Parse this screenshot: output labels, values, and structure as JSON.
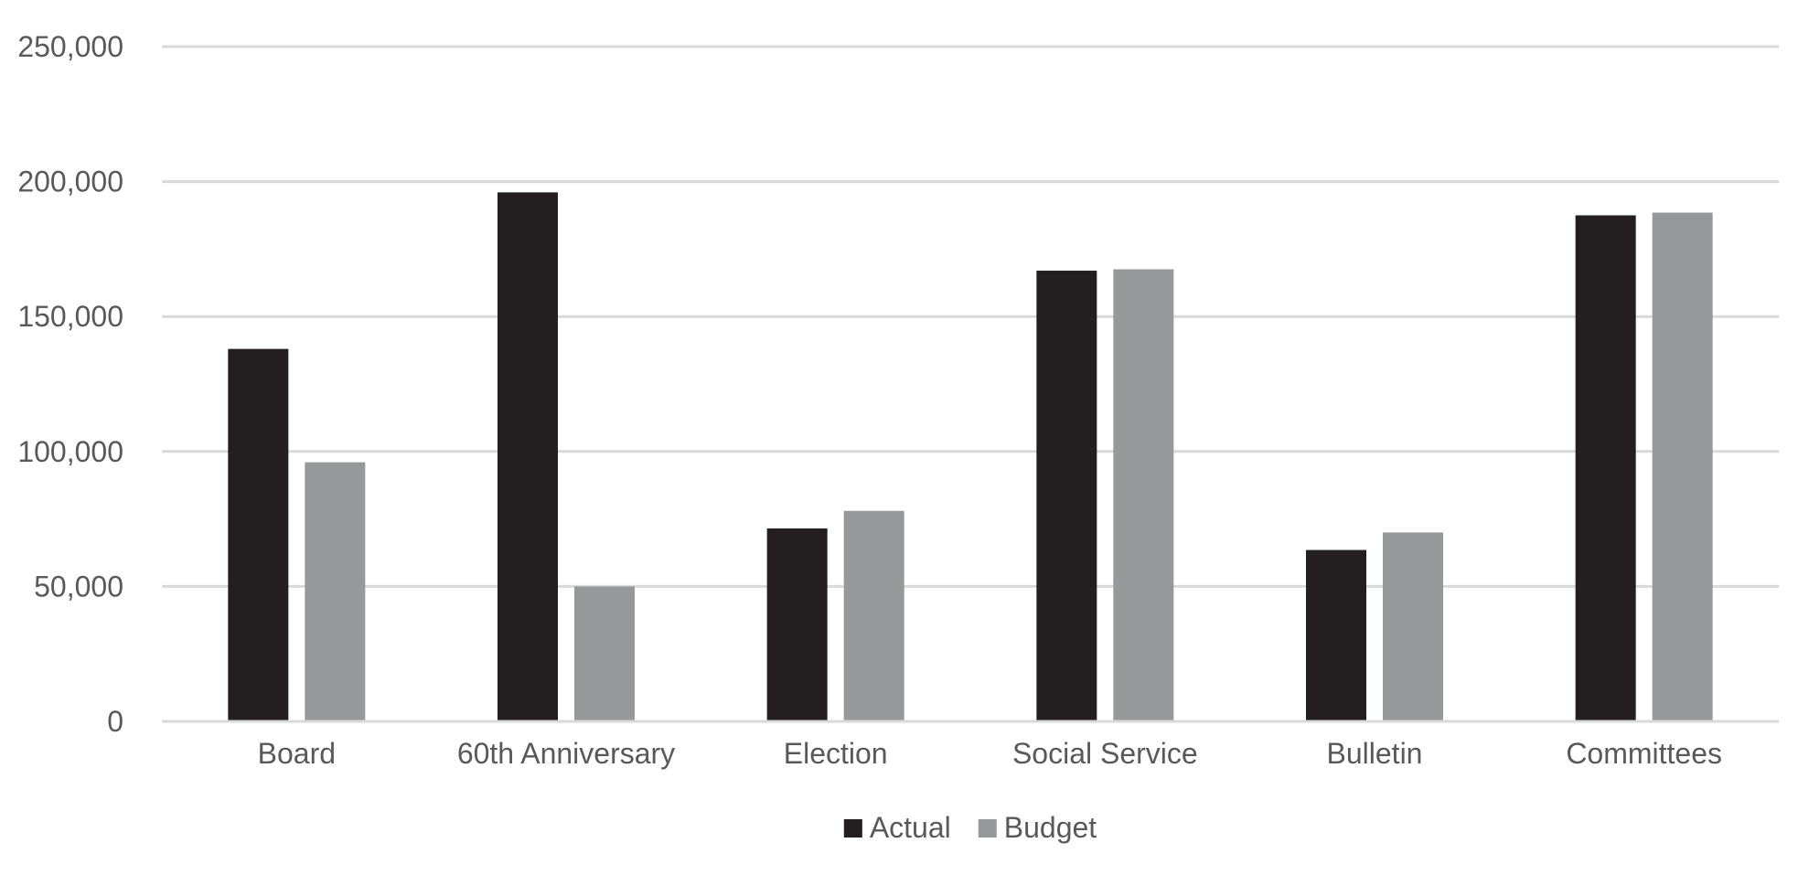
{
  "chart_data": {
    "type": "bar",
    "title": "",
    "xlabel": "",
    "ylabel": "",
    "categories": [
      "Board",
      "60th Anniversary",
      "Election",
      "Social Service",
      "Bulletin",
      "Committees"
    ],
    "series": [
      {
        "name": "Actual",
        "color": "#231f20",
        "values": [
          138000,
          196000,
          71500,
          167000,
          63500,
          187500
        ]
      },
      {
        "name": "Budget",
        "color": "#97989a",
        "values": [
          96000,
          50000,
          78000,
          167500,
          70000,
          188500
        ]
      }
    ],
    "ylim": [
      0,
      250000
    ],
    "yticks": [
      0,
      50000,
      100000,
      150000,
      200000,
      250000
    ],
    "ytick_labels": [
      "0",
      "50,000",
      "100,000",
      "150,000",
      "200,000",
      "250,000"
    ],
    "grid": true,
    "gridline_color": "#d9d9d9",
    "legend_position": "bottom-center"
  }
}
